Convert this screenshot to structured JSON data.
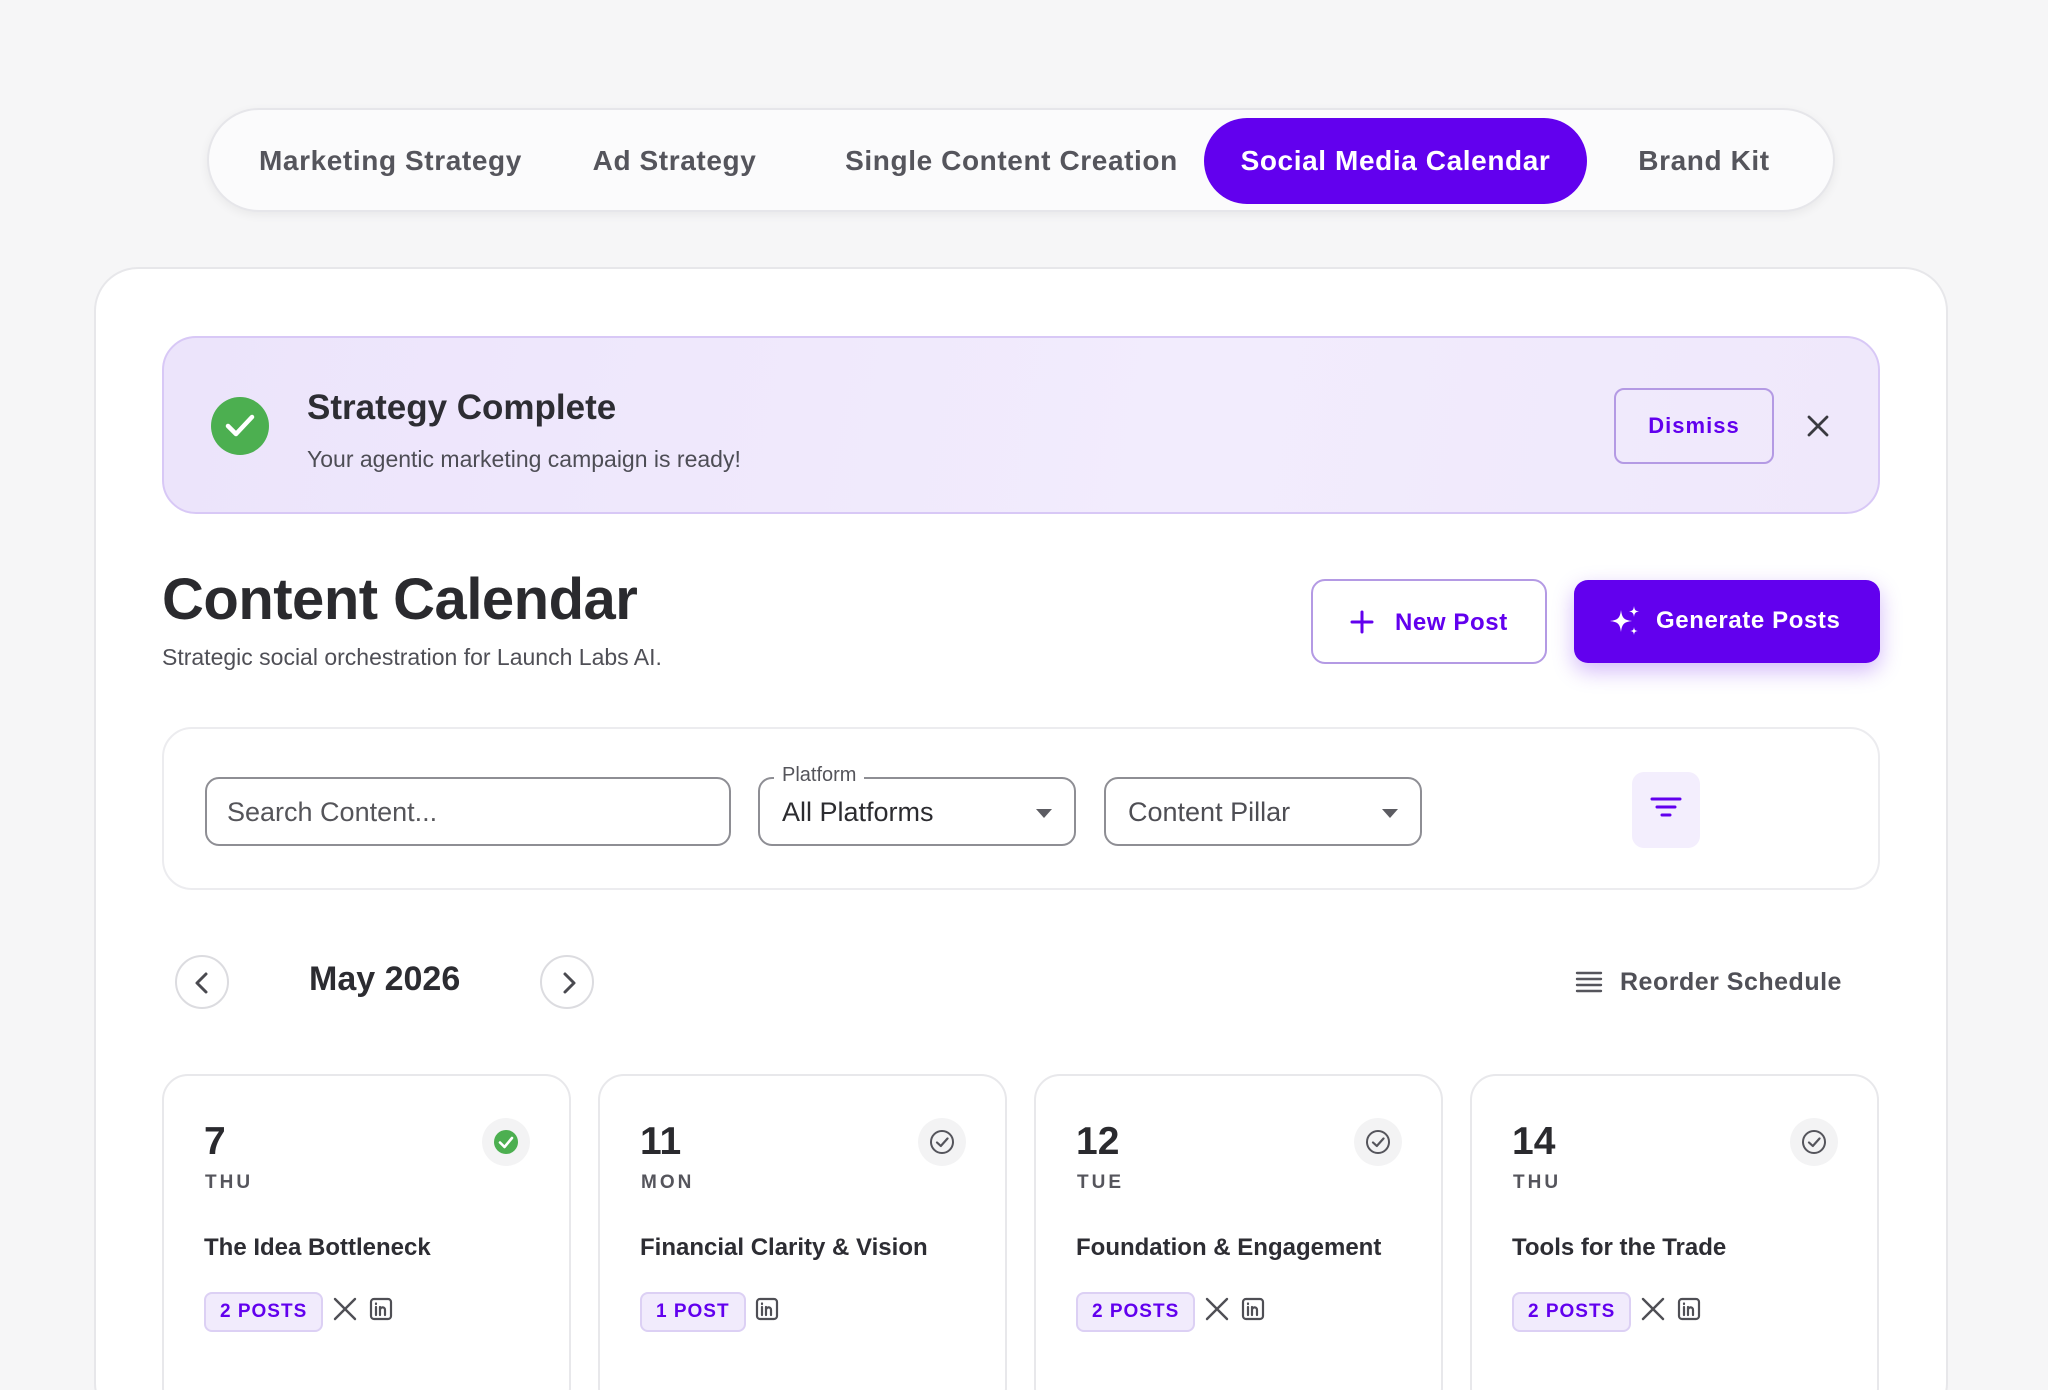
{
  "tabs": [
    {
      "label": "Marketing Strategy",
      "active": false
    },
    {
      "label": "Ad Strategy",
      "active": false
    },
    {
      "label": "Single Content Creation",
      "active": false
    },
    {
      "label": "Social Media Calendar",
      "active": true
    },
    {
      "label": "Brand Kit",
      "active": false
    }
  ],
  "banner": {
    "title": "Strategy Complete",
    "subtitle": "Your agentic marketing campaign is ready!",
    "dismiss_label": "Dismiss",
    "icon": "check-circle-icon",
    "close_icon": "close-icon"
  },
  "header": {
    "title": "Content Calendar",
    "subtitle": "Strategic social orchestration for Launch Labs AI.",
    "new_post_label": "New Post",
    "generate_label": "Generate Posts"
  },
  "filters": {
    "search_placeholder": "Search Content...",
    "platform_label": "Platform",
    "platform_value": "All Platforms",
    "pillar_value": "Content Pillar"
  },
  "calendar": {
    "month": "May 2026",
    "reorder_label": "Reorder Schedule",
    "days": [
      {
        "day": "7",
        "weekday": "THU",
        "title": "The Idea Bottleneck",
        "posts": "2 POSTS",
        "platforms": [
          "x",
          "linkedin"
        ],
        "completed": true
      },
      {
        "day": "11",
        "weekday": "MON",
        "title": "Financial Clarity & Vision",
        "posts": "1 POST",
        "platforms": [
          "linkedin"
        ],
        "completed": false
      },
      {
        "day": "12",
        "weekday": "TUE",
        "title": "Foundation & Engagement",
        "posts": "2 POSTS",
        "platforms": [
          "x",
          "linkedin"
        ],
        "completed": false
      },
      {
        "day": "14",
        "weekday": "THU",
        "title": "Tools for the Trade",
        "posts": "2 POSTS",
        "platforms": [
          "x",
          "linkedin"
        ],
        "completed": false
      }
    ]
  },
  "colors": {
    "accent": "#6200ee",
    "success": "#4caf50",
    "banner_bg": "#ece4fb"
  }
}
